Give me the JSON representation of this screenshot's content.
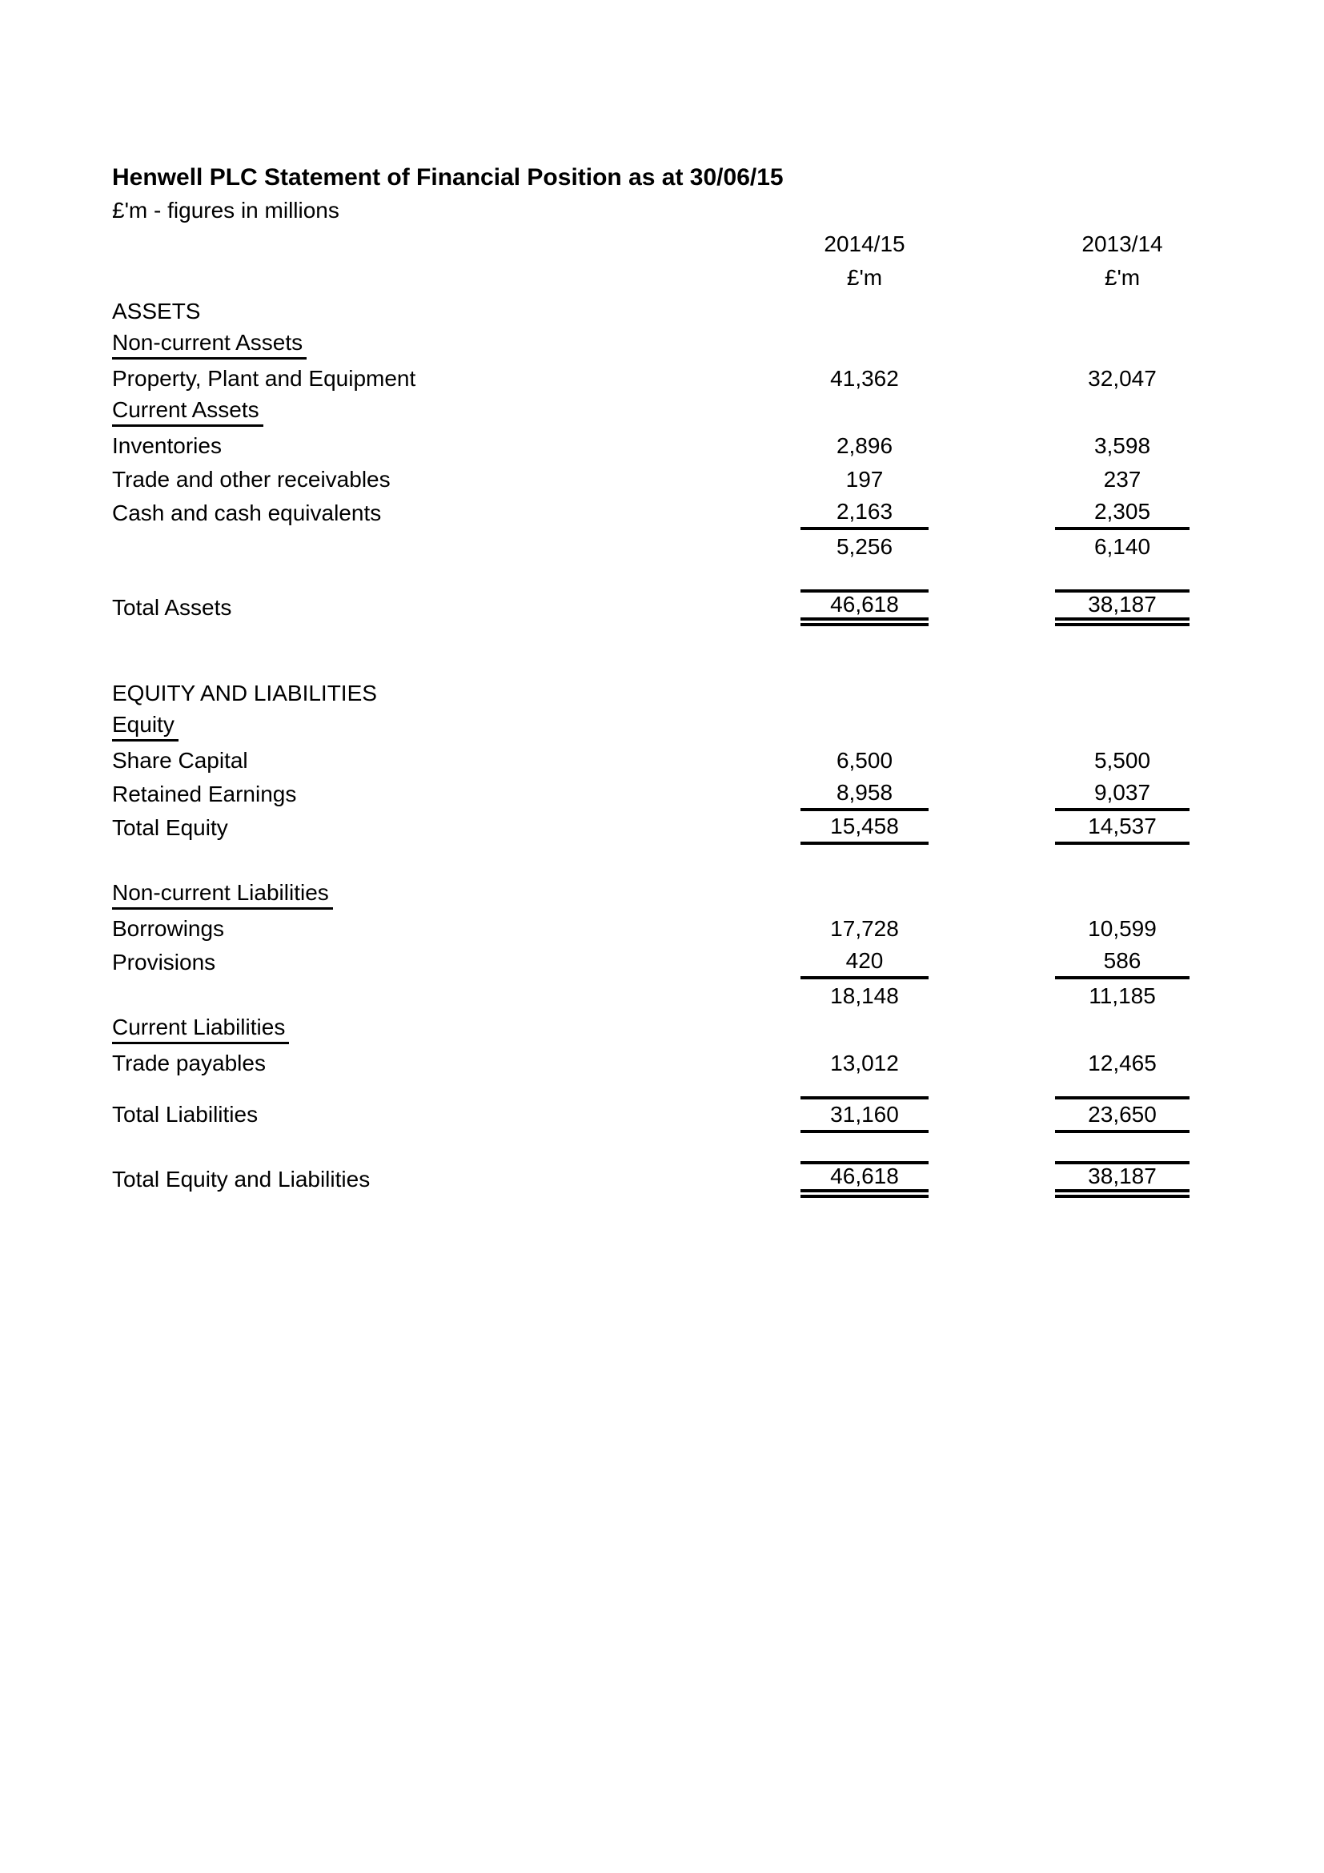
{
  "statement": {
    "title": "Henwell PLC Statement of Financial Position as at 30/06/15",
    "subtitle": "£'m - figures in millions",
    "columns": [
      {
        "year": "2014/15",
        "unit": "£'m"
      },
      {
        "year": "2013/14",
        "unit": "£'m"
      }
    ],
    "rows": [
      {
        "label": "ASSETS",
        "v1": "",
        "v2": ""
      },
      {
        "label": "Non-current Assets",
        "v1": "",
        "v2": ""
      },
      {
        "label": "Property, Plant and Equipment",
        "v1": "41,362",
        "v2": "32,047"
      },
      {
        "label": "Current Assets",
        "v1": "",
        "v2": ""
      },
      {
        "label": "Inventories",
        "v1": "2,896",
        "v2": "3,598"
      },
      {
        "label": "Trade and other receivables",
        "v1": "197",
        "v2": "237"
      },
      {
        "label": "Cash and cash equivalents",
        "v1": "2,163",
        "v2": "2,305"
      },
      {
        "label": "",
        "v1": "5,256",
        "v2": "6,140"
      },
      {
        "label": "Total Assets",
        "v1": "46,618",
        "v2": "38,187"
      },
      {
        "label": "EQUITY AND LIABILITIES",
        "v1": "",
        "v2": ""
      },
      {
        "label": "Equity",
        "v1": "",
        "v2": ""
      },
      {
        "label": "Share Capital",
        "v1": "6,500",
        "v2": "5,500"
      },
      {
        "label": "Retained Earnings",
        "v1": "8,958",
        "v2": "9,037"
      },
      {
        "label": "Total Equity",
        "v1": "15,458",
        "v2": "14,537"
      },
      {
        "label": "Non-current Liabilities",
        "v1": "",
        "v2": ""
      },
      {
        "label": "Borrowings",
        "v1": "17,728",
        "v2": "10,599"
      },
      {
        "label": "Provisions",
        "v1": "420",
        "v2": "586"
      },
      {
        "label": "",
        "v1": "18,148",
        "v2": "11,185"
      },
      {
        "label": "Current Liabilities",
        "v1": "",
        "v2": ""
      },
      {
        "label": "Trade payables",
        "v1": "13,012",
        "v2": "12,465"
      },
      {
        "label": "Total Liabilities",
        "v1": "31,160",
        "v2": "23,650"
      },
      {
        "label": "Total Equity and Liabilities",
        "v1": "46,618",
        "v2": "38,187"
      }
    ]
  }
}
